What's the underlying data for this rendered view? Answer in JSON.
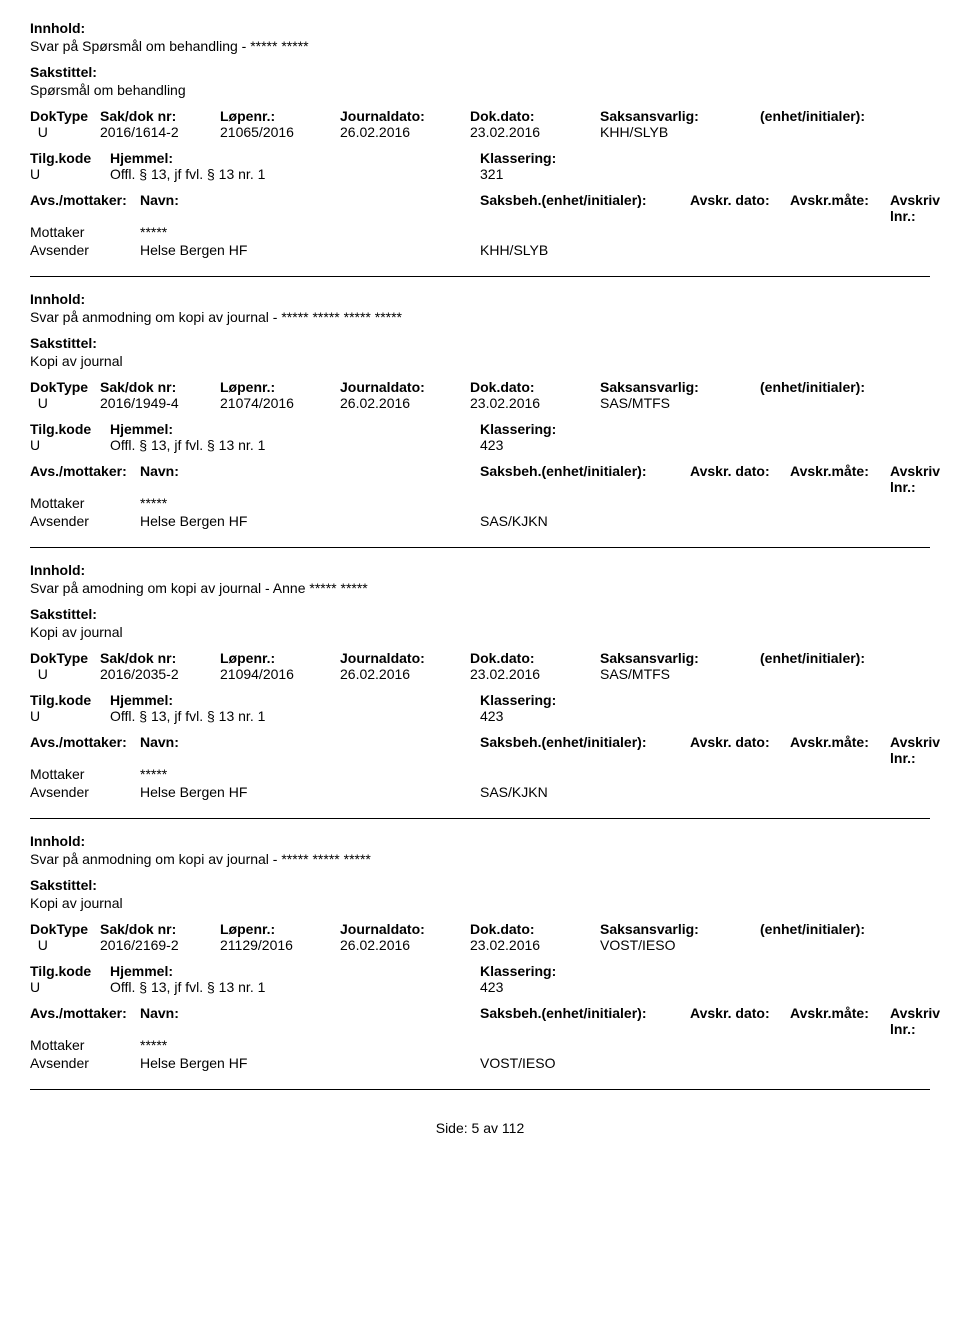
{
  "labels": {
    "innhold": "Innhold:",
    "sakstittel": "Sakstittel:",
    "doktype": "DokType",
    "sakdoknr": "Sak/dok nr:",
    "lopenr": "Løpenr.:",
    "journaldato": "Journaldato:",
    "dokdato": "Dok.dato:",
    "saksansvarlig": "Saksansvarlig:",
    "enhet_initialer": "(enhet/initialer):",
    "tilgkode": "Tilg.kode",
    "hjemmel": "Hjemmel:",
    "klassering": "Klassering:",
    "avsmottaker": "Avs./mottaker:",
    "navn": "Navn:",
    "saksbeh_enhet": "Saksbeh.(enhet/initialer):",
    "avskr_dato": "Avskr. dato:",
    "avskr_mate": "Avskr.måte:",
    "avskriv_lnr": "Avskriv lnr.:",
    "mottaker": "Mottaker",
    "avsender": "Avsender"
  },
  "records": [
    {
      "innhold": "Svar på Spørsmål om behandling - ***** *****",
      "sakstittel": "Spørsmål om behandling",
      "doktype": "U",
      "sakdoknr": "2016/1614-2",
      "lopenr": "21065/2016",
      "journaldato": "26.02.2016",
      "dokdato": "23.02.2016",
      "saksansvarlig": "KHH/SLYB",
      "tilgkode": "U",
      "hjemmel": "Offl. § 13, jf fvl. § 13 nr. 1",
      "klassering": "321",
      "mottaker_navn": "*****",
      "avsender_navn": "Helse Bergen HF",
      "saksbeh": "KHH/SLYB"
    },
    {
      "innhold": "Svar på anmodning om kopi av journal - ***** ***** ***** *****",
      "sakstittel": "Kopi av journal",
      "doktype": "U",
      "sakdoknr": "2016/1949-4",
      "lopenr": "21074/2016",
      "journaldato": "26.02.2016",
      "dokdato": "23.02.2016",
      "saksansvarlig": "SAS/MTFS",
      "tilgkode": "U",
      "hjemmel": "Offl. § 13, jf fvl. § 13 nr. 1",
      "klassering": "423",
      "mottaker_navn": "*****",
      "avsender_navn": "Helse Bergen HF",
      "saksbeh": "SAS/KJKN"
    },
    {
      "innhold": "Svar på amodning om kopi av journal - Anne ***** *****",
      "sakstittel": "Kopi av journal",
      "doktype": "U",
      "sakdoknr": "2016/2035-2",
      "lopenr": "21094/2016",
      "journaldato": "26.02.2016",
      "dokdato": "23.02.2016",
      "saksansvarlig": "SAS/MTFS",
      "tilgkode": "U",
      "hjemmel": "Offl. § 13, jf fvl. § 13 nr. 1",
      "klassering": "423",
      "mottaker_navn": "*****",
      "avsender_navn": "Helse Bergen HF",
      "saksbeh": "SAS/KJKN"
    },
    {
      "innhold": "Svar på anmodning om kopi av journal - ***** ***** *****",
      "sakstittel": "Kopi av journal",
      "doktype": "U",
      "sakdoknr": "2016/2169-2",
      "lopenr": "21129/2016",
      "journaldato": "26.02.2016",
      "dokdato": "23.02.2016",
      "saksansvarlig": "VOST/IESO",
      "tilgkode": "U",
      "hjemmel": "Offl. § 13, jf fvl. § 13 nr. 1",
      "klassering": "423",
      "mottaker_navn": "*****",
      "avsender_navn": "Helse Bergen HF",
      "saksbeh": "VOST/IESO"
    }
  ],
  "footer": {
    "side_label": "Side:",
    "page": "5",
    "av_label": "av",
    "total": "112"
  }
}
